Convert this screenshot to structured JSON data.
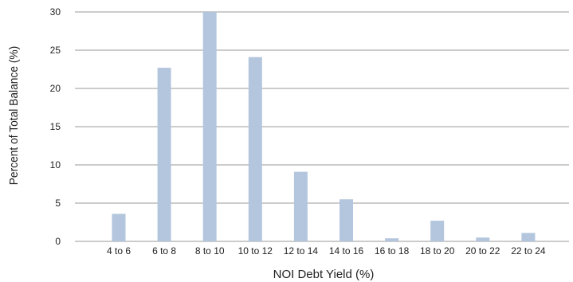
{
  "chart_data": {
    "type": "bar",
    "xlabel": "NOI Debt Yield (%)",
    "ylabel": "Percent of Total Balance (%)",
    "categories": [
      "4 to 6",
      "6 to 8",
      "8 to 10",
      "10 to 12",
      "12 to 14",
      "14 to 16",
      "16 to 18",
      "18 to 20",
      "20 to 22",
      "22 to 24"
    ],
    "values": [
      3.6,
      22.7,
      30.0,
      24.1,
      9.1,
      5.5,
      0.4,
      2.7,
      0.5,
      1.1
    ],
    "ylim": [
      0,
      30
    ],
    "yticks": [
      0,
      5,
      10,
      15,
      20,
      25,
      30
    ],
    "grid": true,
    "colors": {
      "bar": "#b3c6de",
      "grid": "#9a9a9a",
      "text": "#222222"
    }
  }
}
